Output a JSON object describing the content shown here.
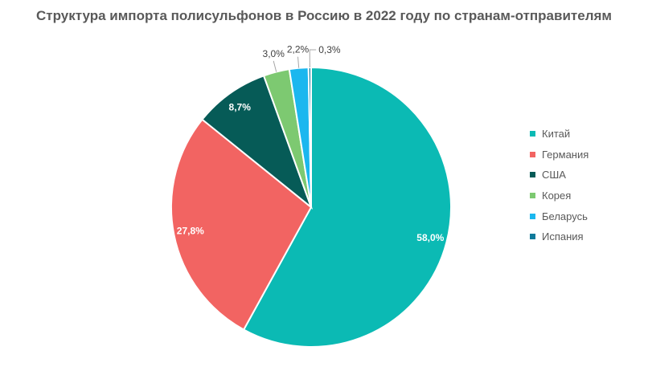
{
  "chart_data": {
    "type": "pie",
    "title": "Структура импорта полисульфонов в Россию в 2022 году по странам-отправителям",
    "categories": [
      "Китай",
      "Германия",
      "США",
      "Корея",
      "Беларусь",
      "Испания"
    ],
    "values": [
      58.0,
      27.8,
      8.7,
      3.0,
      2.2,
      0.3
    ],
    "data_labels": [
      "58,0%",
      "27,8%",
      "8,7%",
      "3,0%",
      "2,2%",
      "0,3%"
    ],
    "colors": [
      "#0BBAB4",
      "#F26462",
      "#065B57",
      "#7DC971",
      "#1BB7EF",
      "#0F7A9A"
    ],
    "start_angle_deg": 0,
    "direction": "clockwise",
    "legend_position": "right"
  }
}
